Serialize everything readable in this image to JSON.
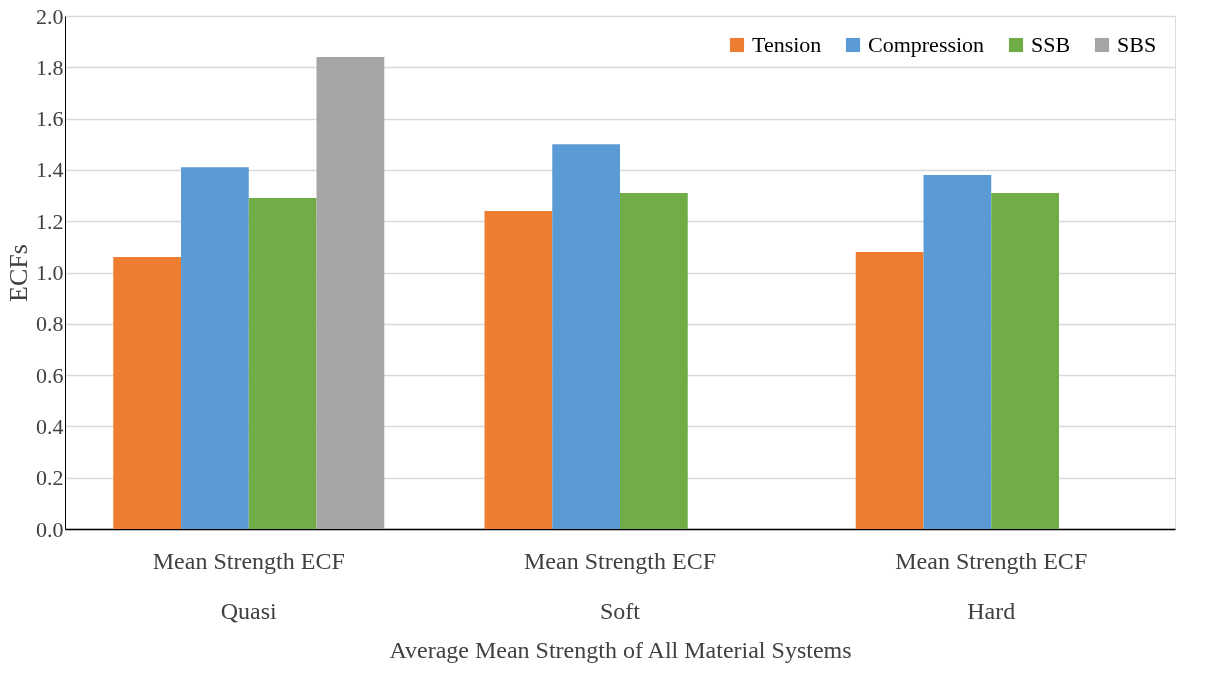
{
  "chart_data": {
    "type": "bar",
    "categories": [
      "Mean Strength ECF\nQuasi",
      "Mean Strength ECF\nSoft",
      "Mean Strength ECF\nHard"
    ],
    "xlabel": "Average Mean Strength of All Material Systems",
    "ylabel": "ECFs",
    "series": [
      {
        "name": "Tension",
        "color": "#ed7d31",
        "values": [
          1.06,
          1.24,
          1.08
        ]
      },
      {
        "name": "Compression",
        "color": "#5b9bd5",
        "values": [
          1.41,
          1.5,
          1.38
        ]
      },
      {
        "name": "SSB",
        "color": "#70ad47",
        "values": [
          1.29,
          1.31,
          1.31
        ]
      },
      {
        "name": "SBS",
        "color": "#a5a5a5",
        "values": [
          1.84,
          null,
          null
        ]
      }
    ],
    "ylim": [
      0,
      2
    ],
    "yticks": [
      {
        "value": 0,
        "label": "0.0"
      },
      {
        "value": 0.2,
        "label": "0.2"
      },
      {
        "value": 0.4,
        "label": "0.4"
      },
      {
        "value": 0.6,
        "label": "0.6"
      },
      {
        "value": 0.8,
        "label": "0.8"
      },
      {
        "value": 1,
        "label": "1.0"
      },
      {
        "value": 1.2,
        "label": "1.2"
      },
      {
        "value": 1.4,
        "label": "1.4"
      },
      {
        "value": 1.6,
        "label": "1.6"
      },
      {
        "value": 1.8,
        "label": "1.8"
      },
      {
        "value": 2,
        "label": "2.0"
      }
    ],
    "grid": "y",
    "legend": "top right"
  }
}
